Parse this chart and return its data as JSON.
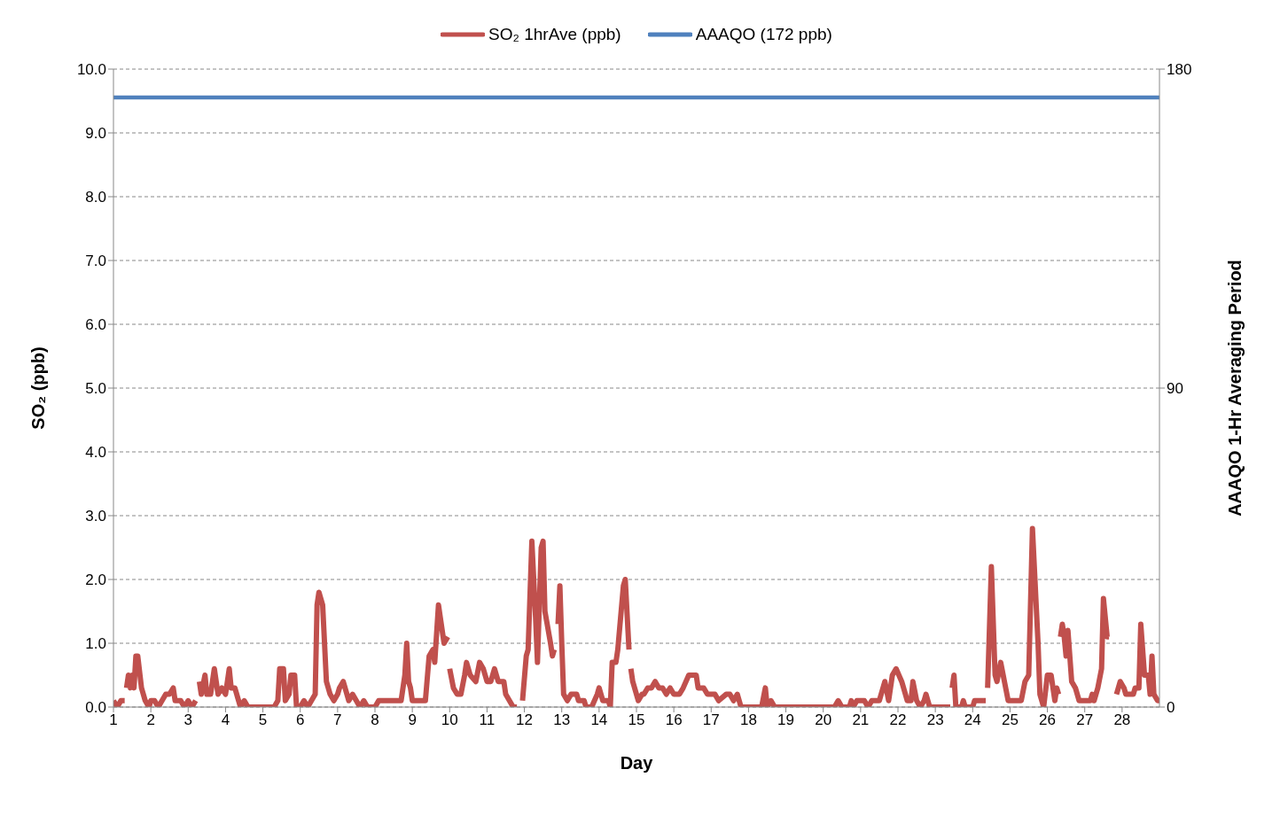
{
  "chart_data": {
    "type": "line",
    "xlabel": "Day",
    "ylabel": "SO₂ (ppb)",
    "y2label": "AAAQO 1-Hr Averaging Period",
    "xlim": [
      1,
      29
    ],
    "xticks": [
      1,
      2,
      3,
      4,
      5,
      6,
      7,
      8,
      9,
      10,
      11,
      12,
      13,
      14,
      15,
      16,
      17,
      18,
      19,
      20,
      21,
      22,
      23,
      24,
      25,
      26,
      27,
      28
    ],
    "ylim": [
      0,
      10
    ],
    "yticks": [
      {
        "value": 0,
        "label": "0.0"
      },
      {
        "value": 1,
        "label": "1.0"
      },
      {
        "value": 2,
        "label": "2.0"
      },
      {
        "value": 3,
        "label": "3.0"
      },
      {
        "value": 4,
        "label": "4.0"
      },
      {
        "value": 5,
        "label": "5.0"
      },
      {
        "value": 6,
        "label": "6.0"
      },
      {
        "value": 7,
        "label": "7.0"
      },
      {
        "value": 8,
        "label": "8.0"
      },
      {
        "value": 9,
        "label": "9.0"
      },
      {
        "value": 10,
        "label": "10.0"
      }
    ],
    "y2lim": [
      0,
      180
    ],
    "y2ticks": [
      0,
      90,
      180
    ],
    "grid": "y",
    "legend": "top",
    "series": [
      {
        "name": "SO₂ 1hrAve (ppb)",
        "color": "#c0504d",
        "x": [
          1.0,
          1.1,
          1.2,
          1.3,
          1.33,
          1.35,
          1.4,
          1.45,
          1.5,
          1.55,
          1.6,
          1.65,
          1.75,
          1.85,
          1.95,
          2.0,
          2.1,
          2.2,
          2.3,
          2.4,
          2.5,
          2.6,
          2.65,
          2.8,
          2.9,
          3.0,
          3.1,
          3.2,
          3.25,
          3.3,
          3.35,
          3.45,
          3.5,
          3.6,
          3.7,
          3.8,
          3.9,
          4.0,
          4.1,
          4.15,
          4.25,
          4.35,
          4.4,
          4.5,
          4.6,
          4.7,
          5.0,
          5.3,
          5.4,
          5.45,
          5.55,
          5.6,
          5.7,
          5.75,
          5.85,
          5.9,
          6.0,
          6.1,
          6.2,
          6.3,
          6.4,
          6.45,
          6.5,
          6.6,
          6.7,
          6.8,
          6.9,
          7.0,
          7.05,
          7.15,
          7.2,
          7.3,
          7.4,
          7.5,
          7.6,
          7.7,
          7.8,
          8.0,
          8.1,
          8.2,
          8.7,
          8.8,
          8.85,
          8.9,
          8.95,
          9.0,
          9.35,
          9.45,
          9.55,
          9.6,
          9.7,
          9.75,
          9.85,
          9.95,
          9.97,
          10.0,
          10.1,
          10.2,
          10.3,
          10.4,
          10.45,
          10.55,
          10.7,
          10.8,
          10.9,
          11.0,
          11.1,
          11.2,
          11.3,
          11.45,
          11.5,
          11.6,
          11.7,
          11.8,
          11.88,
          11.95,
          12.05,
          12.1,
          12.2,
          12.3,
          12.35,
          12.45,
          12.5,
          12.55,
          12.7,
          12.75,
          12.8,
          12.85,
          12.9,
          12.95,
          13.0,
          13.05,
          13.15,
          13.25,
          13.4,
          13.45,
          13.6,
          13.65,
          13.8,
          13.95,
          14.0,
          14.1,
          14.25,
          14.3,
          14.35,
          14.45,
          14.5,
          14.65,
          14.7,
          14.8,
          14.83,
          14.85,
          14.9,
          15.05,
          15.15,
          15.2,
          15.3,
          15.4,
          15.5,
          15.6,
          15.7,
          15.8,
          15.9,
          16.0,
          16.15,
          16.25,
          16.4,
          16.6,
          16.65,
          16.8,
          16.9,
          17.1,
          17.2,
          17.4,
          17.5,
          17.6,
          17.7,
          17.8,
          18.0,
          18.35,
          18.45,
          18.5,
          18.6,
          18.7,
          20.3,
          20.4,
          20.5,
          20.7,
          20.75,
          20.8,
          20.9,
          21.1,
          21.2,
          21.3,
          21.5,
          21.65,
          21.75,
          21.85,
          21.95,
          22.1,
          22.25,
          22.35,
          22.4,
          22.5,
          22.6,
          22.7,
          22.75,
          22.85,
          23.4,
          23.42,
          23.45,
          23.5,
          23.55,
          23.7,
          23.75,
          23.8,
          24.0,
          24.05,
          24.2,
          24.35,
          24.37,
          24.4,
          24.5,
          24.6,
          24.65,
          24.75,
          24.85,
          24.95,
          25.3,
          25.4,
          25.5,
          25.6,
          25.75,
          25.8,
          25.9,
          26.0,
          26.1,
          26.2,
          26.25,
          26.3,
          26.32,
          26.35,
          26.4,
          26.45,
          26.5,
          26.55,
          26.65,
          26.75,
          26.85,
          27.15,
          27.2,
          27.25,
          27.35,
          27.45,
          27.5,
          27.6,
          27.65,
          27.75,
          27.85,
          27.95,
          28.05,
          28.1,
          28.3,
          28.35,
          28.45,
          28.5,
          28.6,
          28.7,
          28.75,
          28.8,
          28.85,
          28.95,
          29.0
        ],
        "values": [
          0.1,
          0.0,
          0.1,
          0.1,
          null,
          0.3,
          0.5,
          0.3,
          0.5,
          0.3,
          0.8,
          0.8,
          0.3,
          0.1,
          0.0,
          0.1,
          0.1,
          0.0,
          0.1,
          0.2,
          0.2,
          0.3,
          0.1,
          0.1,
          0.0,
          0.1,
          0.0,
          0.1,
          null,
          0.4,
          0.2,
          0.5,
          0.2,
          0.2,
          0.6,
          0.2,
          0.3,
          0.2,
          0.6,
          0.3,
          0.3,
          0.1,
          0.0,
          0.1,
          0.0,
          0.0,
          0.0,
          0.0,
          0.1,
          0.6,
          0.6,
          0.1,
          0.2,
          0.5,
          0.5,
          0.0,
          0.0,
          0.1,
          0.0,
          0.1,
          0.2,
          1.6,
          1.8,
          1.6,
          0.4,
          0.2,
          0.1,
          0.2,
          0.3,
          0.4,
          0.3,
          0.1,
          0.2,
          0.1,
          0.0,
          0.1,
          0.0,
          0.0,
          0.1,
          0.1,
          0.1,
          0.5,
          1.0,
          0.4,
          0.3,
          0.1,
          0.1,
          0.8,
          0.9,
          0.7,
          1.6,
          1.4,
          1.0,
          1.1,
          null,
          0.6,
          0.3,
          0.2,
          0.2,
          0.5,
          0.7,
          0.5,
          0.4,
          0.7,
          0.6,
          0.4,
          0.4,
          0.6,
          0.4,
          0.4,
          0.2,
          0.1,
          0.0,
          0.0,
          null,
          0.1,
          0.8,
          0.9,
          2.6,
          1.4,
          0.7,
          2.5,
          2.6,
          1.5,
          1.0,
          0.8,
          0.9,
          null,
          1.3,
          1.9,
          1.0,
          0.2,
          0.1,
          0.2,
          0.2,
          0.1,
          0.1,
          0.0,
          0.0,
          0.2,
          0.3,
          0.1,
          0.1,
          0.0,
          0.7,
          0.7,
          0.9,
          1.9,
          2.0,
          0.9,
          null,
          0.6,
          0.4,
          0.1,
          0.2,
          0.2,
          0.3,
          0.3,
          0.4,
          0.3,
          0.3,
          0.2,
          0.3,
          0.2,
          0.2,
          0.3,
          0.5,
          0.5,
          0.3,
          0.3,
          0.2,
          0.2,
          0.1,
          0.2,
          0.2,
          0.1,
          0.2,
          0.0,
          0.0,
          0.0,
          0.3,
          0.0,
          0.1,
          0.0,
          0.0,
          0.1,
          0.0,
          0.0,
          0.1,
          0.0,
          0.1,
          0.1,
          0.0,
          0.1,
          0.1,
          0.4,
          0.1,
          0.5,
          0.6,
          0.4,
          0.1,
          0.1,
          0.4,
          0.1,
          0.0,
          0.1,
          0.2,
          0.0,
          0.0,
          null,
          0.3,
          0.5,
          0.0,
          0.0,
          0.1,
          0.0,
          0.0,
          0.1,
          0.1,
          0.1,
          null,
          0.3,
          2.2,
          0.5,
          0.4,
          0.7,
          0.4,
          0.1,
          0.1,
          0.4,
          0.5,
          2.8,
          1.0,
          0.2,
          0.0,
          0.5,
          0.5,
          0.1,
          0.3,
          0.2,
          null,
          1.1,
          1.3,
          1.1,
          0.8,
          1.2,
          0.4,
          0.3,
          0.1,
          0.1,
          0.2,
          0.1,
          0.3,
          0.6,
          1.7,
          1.1,
          1.1,
          null,
          0.2,
          0.4,
          0.3,
          0.2,
          0.2,
          0.3,
          0.3,
          1.3,
          0.5,
          0.5,
          0.2,
          0.8,
          0.2,
          0.1,
          0.1
        ]
      },
      {
        "name": "AAAQO (172 ppb)",
        "color": "#4f81bd",
        "axis": "y2",
        "x": [
          1,
          29
        ],
        "values": [
          172,
          172
        ]
      }
    ]
  }
}
